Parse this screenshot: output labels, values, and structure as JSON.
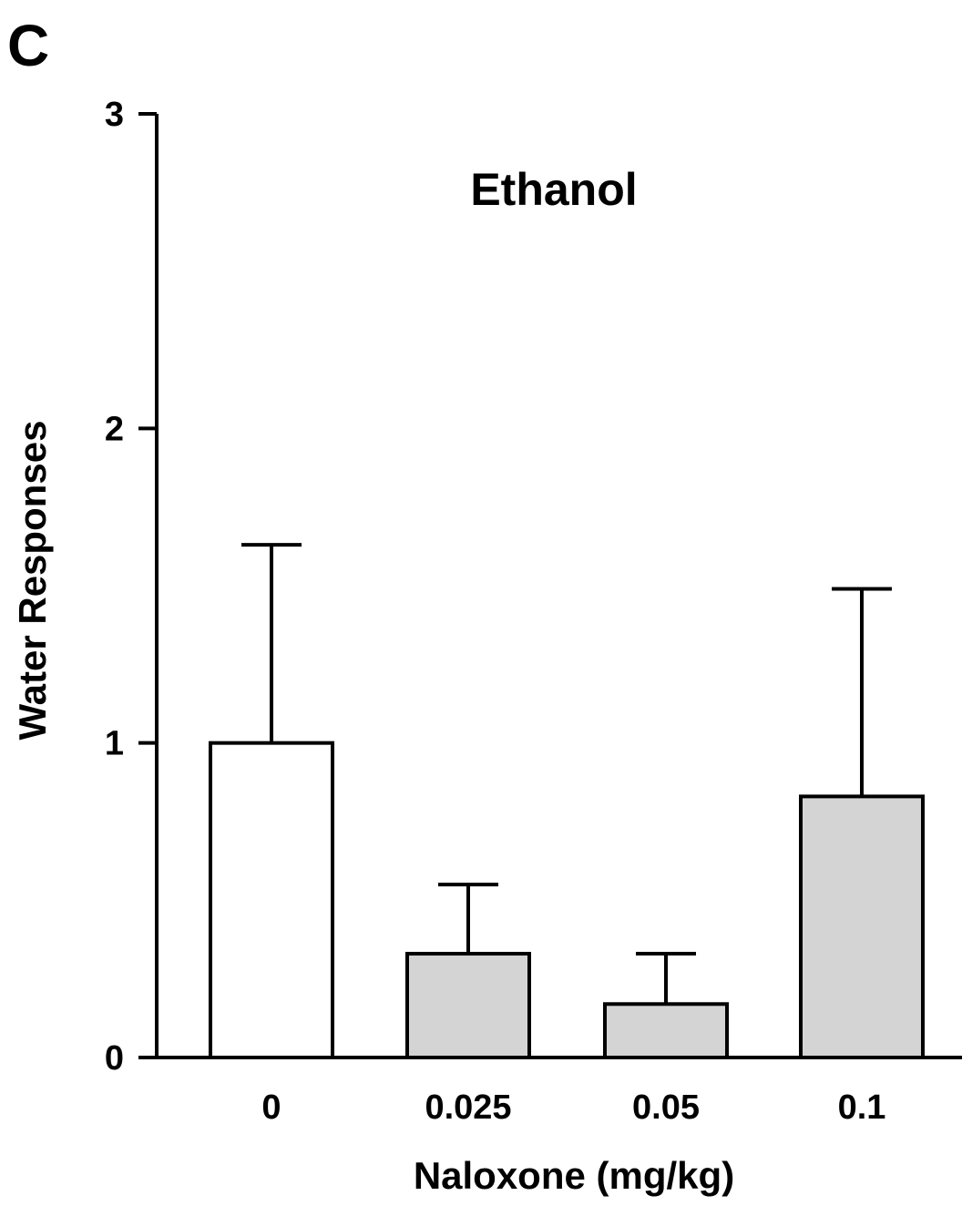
{
  "chart_data": {
    "type": "bar",
    "panel_label": "C",
    "title": "Ethanol",
    "xlabel": "Naloxone (mg/kg)",
    "ylabel": "Water Responses",
    "categories": [
      "0",
      "0.025",
      "0.05",
      "0.1"
    ],
    "values": [
      1.0,
      0.33,
      0.17,
      0.83
    ],
    "error_bars": [
      0.63,
      0.22,
      0.16,
      0.66
    ],
    "bar_fills": [
      "#ffffff",
      "#d4d4d4",
      "#d4d4d4",
      "#d4d4d4"
    ],
    "ylim": [
      0,
      3
    ],
    "yticks": [
      "0",
      "1",
      "2",
      "3"
    ],
    "grid": false
  }
}
